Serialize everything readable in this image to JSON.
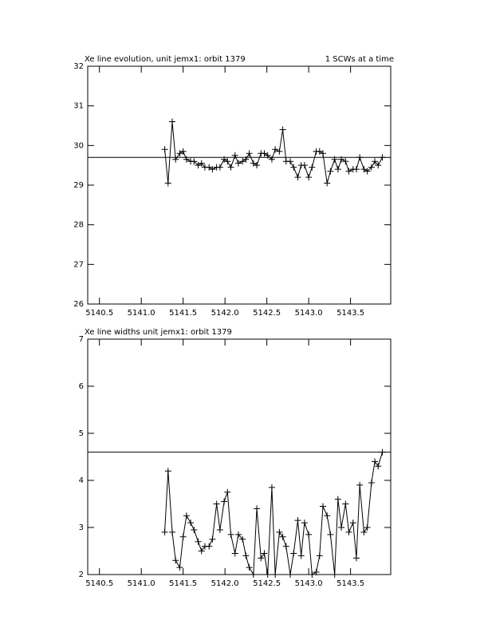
{
  "chart_data": [
    {
      "type": "line",
      "title": "Xe line evolution, unit jemx1: orbit 1379",
      "subtitle": "1 SCWs at a time",
      "color": "#000000",
      "x": [
        5141.28,
        5141.32,
        5141.37,
        5141.41,
        5141.46,
        5141.5,
        5141.54,
        5141.59,
        5141.63,
        5141.68,
        5141.72,
        5141.76,
        5141.81,
        5141.85,
        5141.9,
        5141.94,
        5141.99,
        5142.03,
        5142.07,
        5142.12,
        5142.16,
        5142.21,
        5142.25,
        5142.29,
        5142.34,
        5142.38,
        5142.43,
        5142.47,
        5142.51,
        5142.56,
        5142.6,
        5142.65,
        5142.69,
        5142.73,
        5142.78,
        5142.82,
        5142.87,
        5142.91,
        5142.95,
        5143.0,
        5143.04,
        5143.09,
        5143.13,
        5143.17,
        5143.22,
        5143.26,
        5143.31,
        5143.35,
        5143.39,
        5143.44,
        5143.48,
        5143.53,
        5143.57,
        5143.61,
        5143.66,
        5143.7,
        5143.75,
        5143.79,
        5143.83,
        5143.88
      ],
      "values": [
        29.9,
        29.05,
        30.6,
        29.65,
        29.8,
        29.85,
        29.65,
        29.6,
        29.6,
        29.5,
        29.55,
        29.45,
        29.45,
        29.4,
        29.45,
        29.45,
        29.65,
        29.6,
        29.45,
        29.75,
        29.55,
        29.6,
        29.65,
        29.8,
        29.55,
        29.5,
        29.8,
        29.8,
        29.75,
        29.65,
        29.9,
        29.85,
        30.4,
        29.6,
        29.6,
        29.45,
        29.2,
        29.5,
        29.5,
        29.2,
        29.45,
        29.85,
        29.85,
        29.8,
        29.05,
        29.35,
        29.65,
        29.4,
        29.65,
        29.6,
        29.35,
        29.4,
        29.4,
        29.7,
        29.4,
        29.35,
        29.45,
        29.6,
        29.5,
        29.7
      ],
      "reference_value": 29.7,
      "xlim": [
        5140.36,
        5143.98
      ],
      "xticks": [
        5140.5,
        {
          "value": 5141,
          "label": "5141.0"
        },
        5141.5,
        {
          "value": 5142,
          "label": "5142.0"
        },
        5142.5,
        {
          "value": 5143,
          "label": "5143.0"
        },
        5143.5
      ],
      "ylim": [
        26,
        32
      ],
      "yticks": [
        26,
        27,
        28,
        29,
        30,
        31,
        32
      ]
    },
    {
      "type": "line",
      "title": "Xe line widths unit jemx1: orbit 1379",
      "color": "#000000",
      "x": [
        5141.28,
        5141.32,
        5141.37,
        5141.41,
        5141.46,
        5141.5,
        5141.54,
        5141.59,
        5141.63,
        5141.68,
        5141.72,
        5141.76,
        5141.81,
        5141.85,
        5141.9,
        5141.94,
        5141.99,
        5142.03,
        5142.07,
        5142.12,
        5142.16,
        5142.21,
        5142.25,
        5142.29,
        5142.34,
        5142.38,
        5142.43,
        5142.47,
        5142.51,
        5142.56,
        5142.6,
        5142.65,
        5142.69,
        5142.73,
        5142.78,
        5142.82,
        5142.87,
        5142.91,
        5142.95,
        5143.0,
        5143.04,
        5143.09,
        5143.13,
        5143.17,
        5143.22,
        5143.26,
        5143.31,
        5143.35,
        5143.39,
        5143.44,
        5143.48,
        5143.53,
        5143.57,
        5143.61,
        5143.66,
        5143.7,
        5143.75,
        5143.79,
        5143.83,
        5143.88
      ],
      "values": [
        2.9,
        4.2,
        2.9,
        2.3,
        2.15,
        2.8,
        3.25,
        3.1,
        2.95,
        2.7,
        2.5,
        2.6,
        2.6,
        2.75,
        3.5,
        2.95,
        3.55,
        3.75,
        2.85,
        2.45,
        2.85,
        2.75,
        2.4,
        2.15,
        2.0,
        3.4,
        2.35,
        2.45,
        2.0,
        3.85,
        2.0,
        2.9,
        2.8,
        2.6,
        2.0,
        2.45,
        3.15,
        2.4,
        3.1,
        2.85,
        2.0,
        2.05,
        2.4,
        3.45,
        3.25,
        2.85,
        2.0,
        3.6,
        3.0,
        3.5,
        2.9,
        3.1,
        2.35,
        3.9,
        2.9,
        3.0,
        3.95,
        4.4,
        4.3,
        4.6
      ],
      "reference_value": 4.6,
      "xlim": [
        5140.36,
        5143.98
      ],
      "xticks": [
        5140.5,
        {
          "value": 5141,
          "label": "5141.0"
        },
        5141.5,
        {
          "value": 5142,
          "label": "5142.0"
        },
        5142.5,
        {
          "value": 5143,
          "label": "5143.0"
        },
        5143.5
      ],
      "ylim": [
        2,
        7
      ],
      "yticks": [
        2,
        3,
        4,
        5,
        6,
        7
      ]
    }
  ]
}
